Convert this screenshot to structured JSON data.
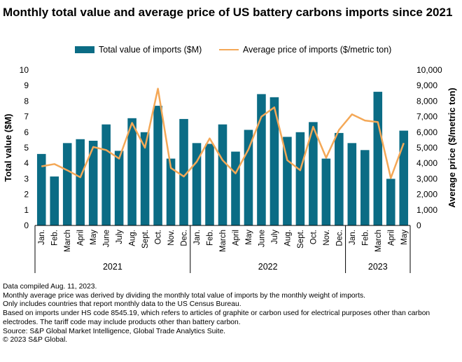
{
  "title": "Monthly total value and average price of US battery carbons imports since 2021",
  "legend": {
    "bar_label": "Total value of imports ($M)",
    "line_label": "Average price of imports ($/metric ton)"
  },
  "colors": {
    "bar": "#0b6c85",
    "line": "#f4a857",
    "axis": "#000000"
  },
  "chart_data": {
    "type": "bar+line",
    "categories": [
      "Jan.",
      "Feb.",
      "March",
      "April",
      "May",
      "June",
      "July",
      "Aug.",
      "Sept.",
      "Oct.",
      "Nov.",
      "Dec.",
      "Jan.",
      "Feb.",
      "March",
      "April",
      "May",
      "June",
      "July",
      "Aug.",
      "Sept.",
      "Oct.",
      "Nov.",
      "Dec.",
      "Jan.",
      "Feb.",
      "March",
      "April",
      "May"
    ],
    "groups": [
      {
        "label": "2021",
        "start": 0,
        "end": 11
      },
      {
        "label": "2022",
        "start": 12,
        "end": 23
      },
      {
        "label": "2023",
        "start": 24,
        "end": 28
      }
    ],
    "series": [
      {
        "name": "Total value of imports ($M)",
        "type": "bar",
        "axis": "left",
        "values": [
          4.6,
          3.15,
          5.3,
          5.55,
          5.45,
          6.5,
          4.8,
          6.9,
          6.0,
          7.7,
          4.3,
          6.85,
          5.3,
          5.25,
          6.5,
          4.75,
          6.15,
          8.45,
          8.25,
          5.7,
          6.0,
          6.65,
          4.3,
          5.95,
          5.3,
          4.85,
          8.6,
          3.0,
          6.1
        ]
      },
      {
        "name": "Average price of imports ($/metric ton)",
        "type": "line",
        "axis": "right",
        "values": [
          3800,
          3950,
          3550,
          3100,
          5050,
          4850,
          4300,
          6600,
          5000,
          8800,
          3700,
          3150,
          4100,
          5600,
          4200,
          3350,
          4900,
          7000,
          7600,
          4200,
          3550,
          6350,
          4350,
          6150,
          7150,
          6750,
          6650,
          3050,
          5300
        ]
      }
    ],
    "ylabel": "Total value ($M)",
    "ylabel_right": "Average price ($/metric ton)",
    "ylim": [
      0,
      10
    ],
    "ylim_right": [
      0,
      10000
    ],
    "yticks": [
      "0",
      "1",
      "2",
      "3",
      "4",
      "5",
      "6",
      "7",
      "8",
      "9",
      "10"
    ],
    "yticks_right": [
      "0",
      "1,000",
      "2,000",
      "3,000",
      "4,000",
      "5,000",
      "6,000",
      "7,000",
      "8,000",
      "9,000",
      "10,000"
    ]
  },
  "notes": [
    "Data compiled Aug. 11, 2023.",
    "Monthly average price was derived by dividing the monthly total value of imports by the monthly weight of imports.",
    "Only includes countries that report monthly data to the US Census Bureau.",
    "Based on imports under HS code 8545.19, which refers to articles of graphite or carbon used for electrical purposes other than carbon electrodes. The tariff code may include products other than battery carbon.",
    "Source: S&P Global Market Intelligence, Global Trade Analytics Suite.",
    "© 2023 S&P Global."
  ]
}
